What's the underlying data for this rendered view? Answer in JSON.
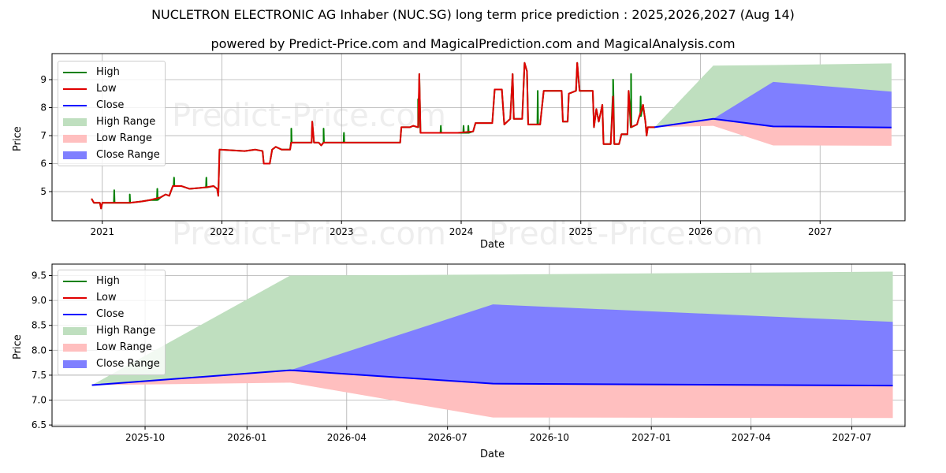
{
  "title": "NUCLETRON ELECTRONIC AG Inhaber (NUC.SG) long term price prediction : 2025,2026,2027 (Aug 14)",
  "subtitle": "powered by Predict-Price.com and MagicalPrediction.com and MagicalAnalysis.com",
  "watermark": "Predict-Price.com",
  "colors": {
    "high": "#008000",
    "low": "#e00000",
    "close": "#0000ff",
    "high_range": "#bfdfbf",
    "low_range": "#ffbfbf",
    "close_range": "#7f7fff"
  },
  "legend": [
    "High",
    "Low",
    "Close",
    "High Range",
    "Low Range",
    "Close Range"
  ],
  "chart_data": [
    {
      "type": "line",
      "title": "historical and predicted price",
      "xlabel": "Date",
      "ylabel": "Price",
      "xlim_year": [
        2020.58,
        2027.71
      ],
      "ylim": [
        3.96,
        9.93
      ],
      "grid": true,
      "legend_position": "top-left",
      "xticks": [
        {
          "v": 2021,
          "label": "2021"
        },
        {
          "v": 2022,
          "label": "2022"
        },
        {
          "v": 2023,
          "label": "2023"
        },
        {
          "v": 2024,
          "label": "2024"
        },
        {
          "v": 2025,
          "label": "2025"
        },
        {
          "v": 2026,
          "label": "2026"
        },
        {
          "v": 2027,
          "label": "2027"
        }
      ],
      "yticks": [
        {
          "v": 5,
          "label": "5"
        },
        {
          "v": 6,
          "label": "6"
        },
        {
          "v": 7,
          "label": "7"
        },
        {
          "v": 8,
          "label": "8"
        },
        {
          "v": 9,
          "label": "9"
        }
      ],
      "low_series_year_price": [
        [
          2020.91,
          4.75
        ],
        [
          2020.93,
          4.6
        ],
        [
          2020.98,
          4.6
        ],
        [
          2020.99,
          4.4
        ],
        [
          2021.0,
          4.6
        ],
        [
          2021.07,
          4.6
        ],
        [
          2021.23,
          4.6
        ],
        [
          2021.33,
          4.65
        ],
        [
          2021.4,
          4.7
        ],
        [
          2021.49,
          4.8
        ],
        [
          2021.53,
          4.9
        ],
        [
          2021.56,
          4.85
        ],
        [
          2021.59,
          5.2
        ],
        [
          2021.66,
          5.2
        ],
        [
          2021.73,
          5.1
        ],
        [
          2021.86,
          5.15
        ],
        [
          2021.93,
          5.2
        ],
        [
          2021.96,
          5.1
        ],
        [
          2021.97,
          4.85
        ],
        [
          2021.98,
          6.5
        ],
        [
          2022.19,
          6.45
        ],
        [
          2022.28,
          6.5
        ],
        [
          2022.34,
          6.45
        ],
        [
          2022.35,
          6.0
        ],
        [
          2022.4,
          6.0
        ],
        [
          2022.42,
          6.5
        ],
        [
          2022.45,
          6.6
        ],
        [
          2022.5,
          6.5
        ],
        [
          2022.57,
          6.5
        ],
        [
          2022.58,
          6.75
        ],
        [
          2022.75,
          6.75
        ],
        [
          2022.755,
          7.5
        ],
        [
          2022.77,
          6.75
        ],
        [
          2022.81,
          6.75
        ],
        [
          2022.83,
          6.65
        ],
        [
          2022.85,
          6.75
        ],
        [
          2023.49,
          6.75
        ],
        [
          2023.5,
          7.3
        ],
        [
          2023.57,
          7.3
        ],
        [
          2023.6,
          7.35
        ],
        [
          2023.64,
          7.3
        ],
        [
          2023.65,
          9.2
        ],
        [
          2023.66,
          7.1
        ],
        [
          2023.97,
          7.1
        ],
        [
          2024.1,
          7.15
        ],
        [
          2024.12,
          7.45
        ],
        [
          2024.26,
          7.45
        ],
        [
          2024.28,
          8.65
        ],
        [
          2024.34,
          8.65
        ],
        [
          2024.36,
          7.4
        ],
        [
          2024.41,
          7.6
        ],
        [
          2024.43,
          9.2
        ],
        [
          2024.44,
          7.6
        ],
        [
          2024.51,
          7.6
        ],
        [
          2024.53,
          9.6
        ],
        [
          2024.55,
          9.3
        ],
        [
          2024.56,
          7.4
        ],
        [
          2024.66,
          7.4
        ],
        [
          2024.68,
          8.2
        ],
        [
          2024.69,
          8.6
        ],
        [
          2024.84,
          8.6
        ],
        [
          2024.85,
          7.5
        ],
        [
          2024.89,
          7.5
        ],
        [
          2024.9,
          8.5
        ],
        [
          2024.96,
          8.6
        ],
        [
          2024.97,
          9.6
        ],
        [
          2024.99,
          8.6
        ],
        [
          2025.1,
          8.6
        ],
        [
          2025.11,
          7.3
        ],
        [
          2025.13,
          7.95
        ],
        [
          2025.15,
          7.5
        ],
        [
          2025.18,
          8.1
        ],
        [
          2025.19,
          6.7
        ],
        [
          2025.25,
          6.7
        ],
        [
          2025.27,
          8.4
        ],
        [
          2025.28,
          6.7
        ],
        [
          2025.32,
          6.7
        ],
        [
          2025.34,
          7.05
        ],
        [
          2025.39,
          7.05
        ],
        [
          2025.4,
          8.6
        ],
        [
          2025.42,
          7.3
        ],
        [
          2025.47,
          7.4
        ],
        [
          2025.49,
          7.7
        ],
        [
          2025.52,
          8.1
        ],
        [
          2025.54,
          7.5
        ],
        [
          2025.55,
          7.0
        ],
        [
          2025.56,
          7.3
        ],
        [
          2025.62,
          7.3
        ]
      ],
      "high_peaks_year_price": [
        [
          2021.1,
          5.05
        ],
        [
          2021.23,
          4.9
        ],
        [
          2021.46,
          5.1
        ],
        [
          2021.6,
          5.5
        ],
        [
          2021.87,
          5.5
        ],
        [
          2022.58,
          7.25
        ],
        [
          2022.85,
          7.25
        ],
        [
          2023.02,
          7.1
        ],
        [
          2023.64,
          8.3
        ],
        [
          2023.83,
          7.35
        ],
        [
          2024.02,
          7.35
        ],
        [
          2024.06,
          7.35
        ],
        [
          2024.64,
          8.6
        ],
        [
          2025.27,
          9.0
        ],
        [
          2025.42,
          9.2
        ],
        [
          2025.5,
          8.4
        ]
      ]
    },
    {
      "type": "area",
      "title": "prediction detail",
      "xlabel": "Date",
      "ylabel": "Price",
      "xlim_date": [
        "2025-07-09",
        "2027-08-18"
      ],
      "ylim": [
        6.47,
        9.73
      ],
      "grid": true,
      "legend_position": "top-left",
      "xticks": [
        {
          "v": "2025-10-01",
          "label": "2025-10"
        },
        {
          "v": "2026-01-01",
          "label": "2026-01"
        },
        {
          "v": "2026-04-01",
          "label": "2026-04"
        },
        {
          "v": "2026-07-01",
          "label": "2026-07"
        },
        {
          "v": "2026-10-01",
          "label": "2026-10"
        },
        {
          "v": "2027-01-01",
          "label": "2027-01"
        },
        {
          "v": "2027-04-01",
          "label": "2027-04"
        },
        {
          "v": "2027-07-01",
          "label": "2027-07"
        }
      ],
      "yticks": [
        {
          "v": 6.5,
          "label": "6.5"
        },
        {
          "v": 7.0,
          "label": "7.0"
        },
        {
          "v": 7.5,
          "label": "7.5"
        },
        {
          "v": 8.0,
          "label": "8.0"
        },
        {
          "v": 8.5,
          "label": "8.5"
        },
        {
          "v": 9.0,
          "label": "9.0"
        },
        {
          "v": 9.5,
          "label": "9.5"
        }
      ],
      "prediction": {
        "dates": [
          "2025-08-14",
          "2026-02-09",
          "2026-08-11",
          "2027-08-07"
        ],
        "close": [
          7.3,
          7.6,
          7.33,
          7.29
        ],
        "high": [
          7.3,
          9.5,
          9.52,
          9.58
        ],
        "low": [
          7.3,
          7.35,
          6.65,
          6.64
        ],
        "close_high": [
          7.3,
          7.6,
          8.92,
          8.57
        ]
      }
    }
  ]
}
